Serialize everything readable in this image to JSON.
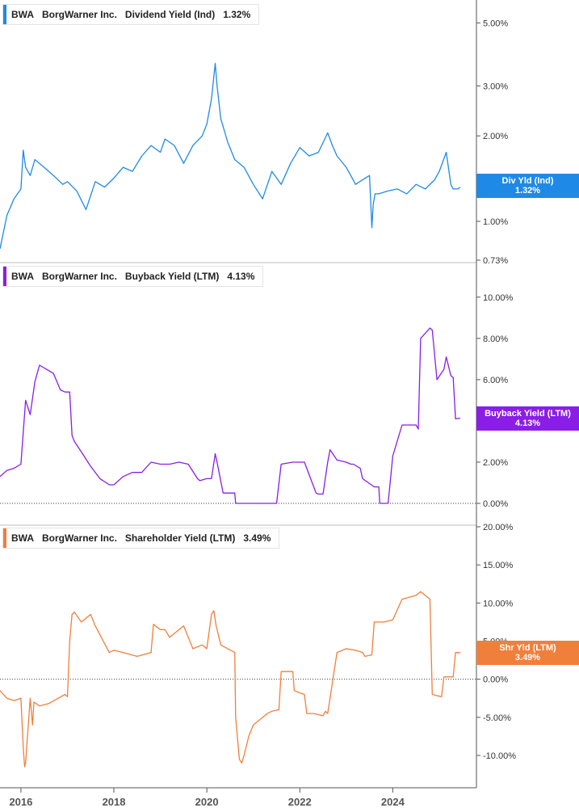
{
  "colors": {
    "dividend": "#1f8ae6",
    "buyback": "#8a1ee6",
    "shareholder": "#f07f3c",
    "axis": "#555555",
    "grid": "#dddddd"
  },
  "x_axis": {
    "ticks": [
      "2016",
      "2018",
      "2020",
      "2022",
      "2024"
    ]
  },
  "panels": [
    {
      "ticker": "BWA",
      "company": "BorgWarner Inc.",
      "metric": "Dividend Yield (Ind)",
      "current": "1.32%",
      "badge_title": "Div Yld (Ind)",
      "badge_value": "1.32%"
    },
    {
      "ticker": "BWA",
      "company": "BorgWarner Inc.",
      "metric": "Buyback Yield (LTM)",
      "current": "4.13%",
      "badge_title": "Buyback Yield (LTM)",
      "badge_value": "4.13%"
    },
    {
      "ticker": "BWA",
      "company": "BorgWarner Inc.",
      "metric": "Shareholder Yield (LTM)",
      "current": "3.49%",
      "badge_title": "Shr Yld (LTM)",
      "badge_value": "3.49%"
    }
  ],
  "chart_data": [
    {
      "type": "line",
      "title": "BWA BorgWarner Inc. Dividend Yield (Ind) 1.32%",
      "scale": "log",
      "ylim": [
        0.73,
        5.6
      ],
      "xlim": [
        2015.55,
        2025.8
      ],
      "y_ticks": [
        {
          "v": 5.0,
          "label": "5.00%"
        },
        {
          "v": 3.0,
          "label": "3.00%"
        },
        {
          "v": 2.0,
          "label": "2.00%"
        },
        {
          "v": 1.0,
          "label": "1.00%"
        },
        {
          "v": 0.73,
          "label": "0.73%"
        }
      ],
      "series": [
        {
          "name": "Dividend Yield (Ind)",
          "x": [
            2015.55,
            2015.7,
            2015.85,
            2016.0,
            2016.05,
            2016.1,
            2016.2,
            2016.3,
            2016.5,
            2016.7,
            2016.9,
            2017.0,
            2017.2,
            2017.4,
            2017.6,
            2017.8,
            2018.0,
            2018.2,
            2018.4,
            2018.6,
            2018.8,
            2019.0,
            2019.1,
            2019.3,
            2019.5,
            2019.7,
            2019.9,
            2020.0,
            2020.1,
            2020.18,
            2020.22,
            2020.3,
            2020.45,
            2020.6,
            2020.8,
            2021.0,
            2021.2,
            2021.4,
            2021.6,
            2021.8,
            2022.0,
            2022.2,
            2022.4,
            2022.6,
            2022.7,
            2022.8,
            2023.0,
            2023.2,
            2023.35,
            2023.5,
            2023.55,
            2023.58,
            2023.62,
            2023.7,
            2023.9,
            2024.1,
            2024.3,
            2024.5,
            2024.7,
            2024.9,
            2025.0,
            2025.15,
            2025.25,
            2025.3,
            2025.4,
            2025.45
          ],
          "values": [
            0.8,
            1.05,
            1.2,
            1.3,
            1.78,
            1.55,
            1.45,
            1.65,
            1.55,
            1.45,
            1.35,
            1.38,
            1.28,
            1.1,
            1.38,
            1.32,
            1.42,
            1.55,
            1.5,
            1.7,
            1.85,
            1.75,
            1.95,
            1.85,
            1.6,
            1.85,
            2.0,
            2.2,
            2.7,
            3.6,
            3.0,
            2.3,
            1.9,
            1.65,
            1.55,
            1.35,
            1.2,
            1.5,
            1.35,
            1.6,
            1.82,
            1.7,
            1.75,
            2.05,
            1.85,
            1.7,
            1.55,
            1.35,
            1.4,
            1.45,
            0.95,
            1.15,
            1.25,
            1.25,
            1.28,
            1.3,
            1.25,
            1.35,
            1.3,
            1.4,
            1.5,
            1.75,
            1.35,
            1.3,
            1.3,
            1.32
          ]
        }
      ]
    },
    {
      "type": "line",
      "title": "BWA BorgWarner Inc. Buyback Yield (LTM) 4.13%",
      "scale": "linear",
      "ylim": [
        0,
        10.5
      ],
      "xlim": [
        2015.55,
        2025.8
      ],
      "zero_line": true,
      "y_ticks": [
        {
          "v": 10,
          "label": "10.00%"
        },
        {
          "v": 8,
          "label": "8.00%"
        },
        {
          "v": 6,
          "label": "6.00%"
        },
        {
          "v": 4,
          "label": "4.00%"
        },
        {
          "v": 2,
          "label": "2.00%"
        },
        {
          "v": 0,
          "label": "0.00%"
        }
      ],
      "series": [
        {
          "name": "Buyback Yield (LTM)",
          "x": [
            2015.55,
            2015.7,
            2015.85,
            2016.0,
            2016.1,
            2016.2,
            2016.3,
            2016.4,
            2016.55,
            2016.7,
            2016.85,
            2016.95,
            2017.05,
            2017.1,
            2017.15,
            2017.3,
            2017.5,
            2017.7,
            2017.9,
            2018.0,
            2018.2,
            2018.4,
            2018.6,
            2018.8,
            2019.0,
            2019.2,
            2019.4,
            2019.6,
            2019.8,
            2019.85,
            2020.0,
            2020.1,
            2020.18,
            2020.22,
            2020.35,
            2020.6,
            2020.62,
            2020.65,
            2021.0,
            2021.2,
            2021.5,
            2021.6,
            2021.85,
            2021.87,
            2022.1,
            2022.35,
            2022.4,
            2022.5,
            2022.6,
            2022.65,
            2022.8,
            2023.0,
            2023.1,
            2023.15,
            2023.3,
            2023.35,
            2023.6,
            2023.7,
            2023.72,
            2023.85,
            2023.9,
            2024.0,
            2024.2,
            2024.3,
            2024.5,
            2024.55,
            2024.6,
            2024.8,
            2024.85,
            2024.95,
            2025.1,
            2025.15,
            2025.25,
            2025.3,
            2025.35,
            2025.45
          ],
          "values": [
            1.3,
            1.6,
            1.7,
            1.9,
            5.0,
            4.3,
            5.9,
            6.7,
            6.5,
            6.3,
            5.5,
            5.4,
            5.4,
            3.3,
            3.0,
            2.5,
            1.8,
            1.2,
            0.9,
            0.9,
            1.3,
            1.5,
            1.5,
            2.0,
            1.9,
            1.9,
            2.0,
            1.9,
            1.2,
            1.1,
            1.2,
            1.2,
            2.4,
            2.0,
            0.5,
            0.5,
            0.0,
            0.0,
            0.0,
            0.0,
            0.0,
            1.9,
            2.0,
            2.0,
            2.0,
            0.5,
            0.45,
            0.45,
            2.0,
            2.6,
            2.1,
            2.0,
            1.9,
            1.9,
            1.7,
            1.2,
            0.8,
            0.8,
            0.0,
            0.0,
            0.0,
            2.3,
            3.8,
            3.8,
            3.8,
            3.6,
            8.0,
            8.5,
            8.4,
            6.0,
            6.5,
            7.1,
            6.2,
            6.1,
            4.1,
            4.13
          ]
        }
      ]
    },
    {
      "type": "line",
      "title": "BWA BorgWarner Inc. Shareholder Yield (LTM) 3.49%",
      "scale": "linear",
      "ylim": [
        -13.5,
        20
      ],
      "xlim": [
        2015.55,
        2025.8
      ],
      "zero_line": true,
      "y_ticks": [
        {
          "v": 20,
          "label": "20.00%"
        },
        {
          "v": 15,
          "label": "15.00%"
        },
        {
          "v": 10,
          "label": "10.00%"
        },
        {
          "v": 5,
          "label": "5.00%"
        },
        {
          "v": 0,
          "label": "0.00%"
        },
        {
          "v": -5,
          "label": "-5.00%"
        },
        {
          "v": -10,
          "label": "-10.00%"
        }
      ],
      "series": [
        {
          "name": "Shareholder Yield (LTM)",
          "x": [
            2015.55,
            2015.7,
            2015.85,
            2016.0,
            2016.05,
            2016.08,
            2016.1,
            2016.2,
            2016.25,
            2016.28,
            2016.4,
            2016.6,
            2016.8,
            2016.95,
            2017.0,
            2017.05,
            2017.1,
            2017.15,
            2017.3,
            2017.5,
            2017.6,
            2017.9,
            2018.0,
            2018.2,
            2018.5,
            2018.8,
            2018.85,
            2019.0,
            2019.1,
            2019.2,
            2019.5,
            2019.7,
            2019.9,
            2020.0,
            2020.1,
            2020.15,
            2020.2,
            2020.3,
            2020.45,
            2020.6,
            2020.62,
            2020.7,
            2020.75,
            2020.8,
            2020.9,
            2021.0,
            2021.3,
            2021.4,
            2021.55,
            2021.6,
            2021.85,
            2021.88,
            2022.0,
            2022.1,
            2022.15,
            2022.3,
            2022.5,
            2022.55,
            2022.6,
            2022.8,
            2023.0,
            2023.2,
            2023.35,
            2023.4,
            2023.55,
            2023.6,
            2023.8,
            2024.0,
            2024.2,
            2024.5,
            2024.6,
            2024.8,
            2024.85,
            2025.05,
            2025.1,
            2025.3,
            2025.35,
            2025.45
          ],
          "values": [
            -1.5,
            -2.5,
            -2.8,
            -2.5,
            -9.0,
            -11.5,
            -11.0,
            -2.5,
            -6.0,
            -3.0,
            -3.5,
            -3.2,
            -2.5,
            -2.0,
            -2.3,
            5.0,
            8.5,
            8.8,
            7.5,
            8.5,
            7.0,
            3.5,
            3.8,
            3.5,
            3.0,
            3.5,
            7.2,
            6.5,
            6.5,
            5.5,
            7.0,
            4.0,
            4.5,
            4.0,
            8.5,
            9.0,
            7.0,
            4.5,
            4.0,
            3.5,
            -5.0,
            -10.5,
            -11.0,
            -10.0,
            -7.5,
            -6.0,
            -4.5,
            -4.2,
            -4.0,
            1.0,
            1.0,
            -1.5,
            -1.8,
            -2.0,
            -4.5,
            -4.5,
            -4.8,
            -4.2,
            -4.5,
            3.5,
            4.0,
            3.8,
            3.5,
            3.0,
            3.2,
            7.5,
            7.5,
            7.8,
            10.5,
            11.0,
            11.5,
            10.5,
            -2.0,
            -2.3,
            0.3,
            0.3,
            3.5,
            3.49
          ]
        }
      ]
    }
  ]
}
